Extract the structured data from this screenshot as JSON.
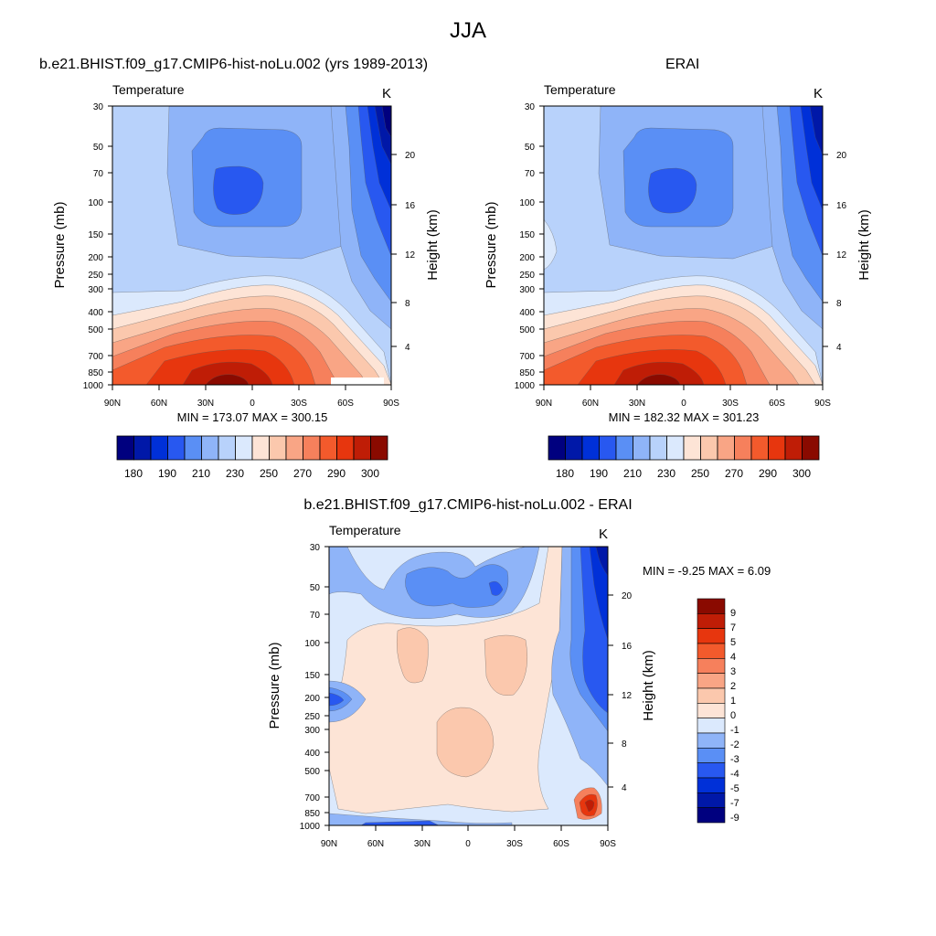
{
  "title": "JJA",
  "colors": {
    "abs_levels": [
      "#00007f",
      "#0018a8",
      "#0030d8",
      "#2858f0",
      "#5a8ff5",
      "#8fb4f8",
      "#b8d2fb",
      "#dbe9fd",
      "#fde4d6",
      "#fbc8ad",
      "#f9a585",
      "#f6805c",
      "#f35a2c",
      "#e7360e",
      "#bf1d06",
      "#8a0a00"
    ],
    "diff_levels": [
      "#00007f",
      "#0018a8",
      "#0030d8",
      "#2858f0",
      "#5a8ff5",
      "#8fb4f8",
      "#dbe9fd",
      "#fde4d6",
      "#fbc8ad",
      "#f9a585",
      "#f6805c",
      "#f35a2c",
      "#e7360e",
      "#bf1d06",
      "#8a0a00"
    ]
  },
  "panels": [
    {
      "title": "b.e21.BHIST.f09_g17.CMIP6-hist-noLu.002 (yrs 1989-2013)",
      "variable": "Temperature",
      "unit": "K",
      "ylabel_left": "Pressure (mb)",
      "ylabel_right": "Height (km)",
      "minmax": "MIN = 173.07  MAX = 300.15"
    },
    {
      "title": "ERAI",
      "variable": "Temperature",
      "unit": "K",
      "ylabel_left": "Pressure (mb)",
      "ylabel_right": "Height (km)",
      "minmax": "MIN = 182.32  MAX = 301.23"
    },
    {
      "title": "b.e21.BHIST.f09_g17.CMIP6-hist-noLu.002 - ERAI",
      "variable": "Temperature",
      "unit": "K",
      "ylabel_left": "Pressure (mb)",
      "ylabel_right": "Height (km)",
      "minmax": "MIN =  -9.25  MAX =   6.09"
    }
  ],
  "chart_data": [
    {
      "type": "heatmap",
      "title": "b.e21.BHIST.f09_g17.CMIP6-hist-noLu.002 (yrs 1989-2013)",
      "variable": "Temperature",
      "units": "K",
      "x_ticks": [
        "90N",
        "60N",
        "30N",
        "0",
        "30S",
        "60S",
        "90S"
      ],
      "x_values": [
        90,
        60,
        30,
        0,
        -30,
        -60,
        -90
      ],
      "y_ticks_pressure": [
        "30",
        "50",
        "70",
        "100",
        "150",
        "200",
        "250",
        "300",
        "400",
        "500",
        "700",
        "850",
        "1000"
      ],
      "y_ticks_height": [
        "4",
        "8",
        "12",
        "16",
        "20"
      ],
      "xlim": [
        90,
        -90
      ],
      "ylim_pressure_mb": [
        1000,
        30
      ],
      "y_log_scale": true,
      "min": 173.07,
      "max": 300.15,
      "colorbar_labels": [
        "180",
        "190",
        "210",
        "230",
        "250",
        "270",
        "290",
        "300"
      ],
      "colorbar_bins": 16
    },
    {
      "type": "heatmap",
      "title": "ERAI",
      "variable": "Temperature",
      "units": "K",
      "x_ticks": [
        "90N",
        "60N",
        "30N",
        "0",
        "30S",
        "60S",
        "90S"
      ],
      "x_values": [
        90,
        60,
        30,
        0,
        -30,
        -60,
        -90
      ],
      "y_ticks_pressure": [
        "30",
        "50",
        "70",
        "100",
        "150",
        "200",
        "250",
        "300",
        "400",
        "500",
        "700",
        "850",
        "1000"
      ],
      "y_ticks_height": [
        "4",
        "8",
        "12",
        "16",
        "20"
      ],
      "xlim": [
        90,
        -90
      ],
      "ylim_pressure_mb": [
        1000,
        30
      ],
      "y_log_scale": true,
      "min": 182.32,
      "max": 301.23,
      "colorbar_labels": [
        "180",
        "190",
        "210",
        "230",
        "250",
        "270",
        "290",
        "300"
      ],
      "colorbar_bins": 16
    },
    {
      "type": "heatmap",
      "title": "b.e21.BHIST.f09_g17.CMIP6-hist-noLu.002 - ERAI",
      "variable": "Temperature",
      "units": "K",
      "x_ticks": [
        "90N",
        "60N",
        "30N",
        "0",
        "30S",
        "60S",
        "90S"
      ],
      "x_values": [
        90,
        60,
        30,
        0,
        -30,
        -60,
        -90
      ],
      "y_ticks_pressure": [
        "30",
        "50",
        "70",
        "100",
        "150",
        "200",
        "250",
        "300",
        "400",
        "500",
        "700",
        "850",
        "1000"
      ],
      "y_ticks_height": [
        "4",
        "8",
        "12",
        "16",
        "20"
      ],
      "xlim": [
        90,
        -90
      ],
      "ylim_pressure_mb": [
        1000,
        30
      ],
      "y_log_scale": true,
      "min": -9.25,
      "max": 6.09,
      "colorbar_labels": [
        "9",
        "7",
        "5",
        "4",
        "3",
        "2",
        "1",
        "0",
        "-1",
        "-2",
        "-3",
        "-4",
        "-5",
        "-7",
        "-9"
      ],
      "colorbar_bins": 15
    }
  ]
}
